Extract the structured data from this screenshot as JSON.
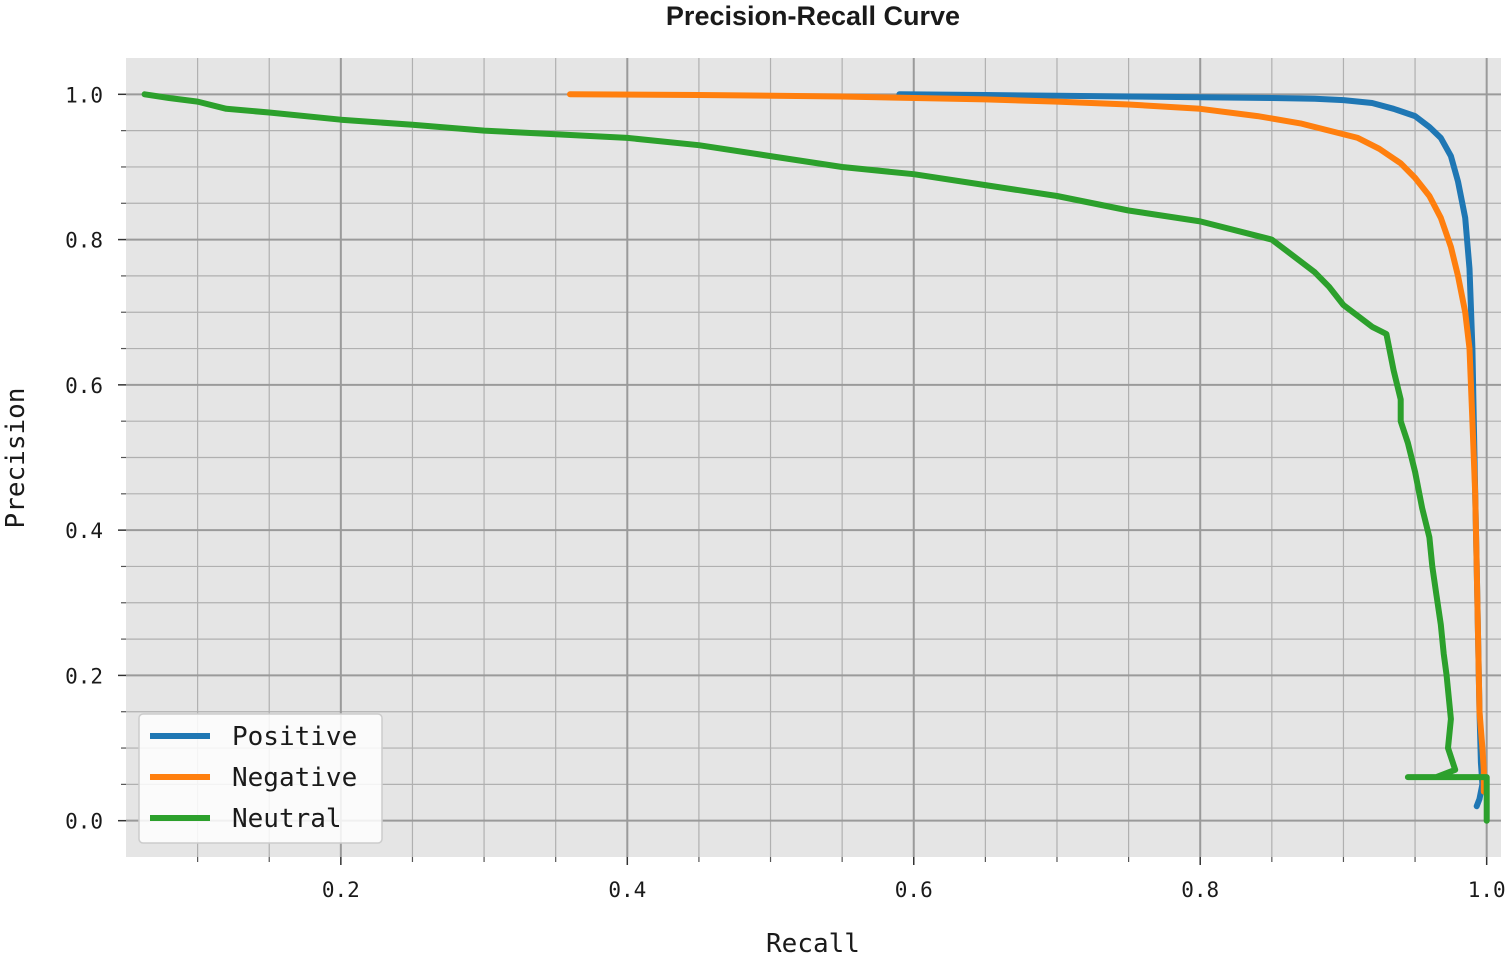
{
  "chart_data": {
    "type": "line",
    "title": "Precision-Recall Curve",
    "xlabel": "Recall",
    "ylabel": "Precision",
    "xlim": [
      0.05,
      1.01
    ],
    "ylim": [
      -0.05,
      1.05
    ],
    "xticks": [
      0.2,
      0.4,
      0.6,
      0.8,
      1.0
    ],
    "xtick_labels": [
      "0.2",
      "0.4",
      "0.6",
      "0.8",
      "1.0"
    ],
    "yticks": [
      0.0,
      0.2,
      0.4,
      0.6,
      0.8,
      1.0
    ],
    "ytick_labels": [
      "0.0",
      "0.2",
      "0.4",
      "0.6",
      "0.8",
      "1.0"
    ],
    "grid": true,
    "minor_grid": true,
    "legend_position": "lower-left",
    "series": [
      {
        "name": "Positive",
        "color": "#1f77b4",
        "x": [
          0.59,
          0.65,
          0.7,
          0.75,
          0.8,
          0.85,
          0.88,
          0.9,
          0.92,
          0.935,
          0.95,
          0.96,
          0.968,
          0.975,
          0.98,
          0.985,
          0.988,
          0.99,
          0.991,
          0.992,
          0.993,
          0.994,
          0.995,
          0.996,
          0.997,
          0.995,
          0.993
        ],
        "y": [
          1.0,
          0.999,
          0.998,
          0.997,
          0.996,
          0.995,
          0.994,
          0.992,
          0.988,
          0.98,
          0.97,
          0.955,
          0.94,
          0.915,
          0.88,
          0.83,
          0.76,
          0.65,
          0.55,
          0.45,
          0.35,
          0.25,
          0.15,
          0.08,
          0.05,
          0.03,
          0.02
        ]
      },
      {
        "name": "Negative",
        "color": "#ff7f0e",
        "x": [
          0.36,
          0.45,
          0.55,
          0.65,
          0.7,
          0.75,
          0.8,
          0.84,
          0.87,
          0.89,
          0.91,
          0.925,
          0.94,
          0.95,
          0.96,
          0.968,
          0.975,
          0.98,
          0.985,
          0.988,
          0.99,
          0.992,
          0.993,
          0.994,
          0.995,
          0.997,
          0.998,
          0.998
        ],
        "y": [
          1.0,
          0.999,
          0.997,
          0.993,
          0.99,
          0.986,
          0.98,
          0.97,
          0.96,
          0.95,
          0.94,
          0.925,
          0.905,
          0.885,
          0.86,
          0.83,
          0.79,
          0.75,
          0.7,
          0.65,
          0.55,
          0.45,
          0.35,
          0.25,
          0.15,
          0.1,
          0.07,
          0.04
        ]
      },
      {
        "name": "Neutral",
        "color": "#2ca02c",
        "x": [
          0.063,
          0.08,
          0.1,
          0.12,
          0.15,
          0.2,
          0.25,
          0.3,
          0.35,
          0.4,
          0.45,
          0.5,
          0.55,
          0.6,
          0.65,
          0.7,
          0.75,
          0.8,
          0.83,
          0.85,
          0.86,
          0.87,
          0.88,
          0.89,
          0.9,
          0.91,
          0.92,
          0.93,
          0.935,
          0.94,
          0.94,
          0.945,
          0.95,
          0.955,
          0.96,
          0.962,
          0.965,
          0.968,
          0.97,
          0.972,
          0.975,
          0.973,
          0.978,
          0.965,
          0.945,
          0.96,
          0.99,
          1.0,
          1.0
        ],
        "y": [
          1.0,
          0.995,
          0.99,
          0.98,
          0.975,
          0.965,
          0.958,
          0.95,
          0.945,
          0.94,
          0.93,
          0.915,
          0.9,
          0.89,
          0.875,
          0.86,
          0.84,
          0.825,
          0.81,
          0.8,
          0.785,
          0.77,
          0.755,
          0.735,
          0.71,
          0.695,
          0.68,
          0.67,
          0.62,
          0.58,
          0.55,
          0.52,
          0.48,
          0.43,
          0.39,
          0.35,
          0.31,
          0.27,
          0.23,
          0.2,
          0.14,
          0.1,
          0.07,
          0.06,
          0.06,
          0.06,
          0.06,
          0.06,
          0.0
        ]
      }
    ]
  }
}
